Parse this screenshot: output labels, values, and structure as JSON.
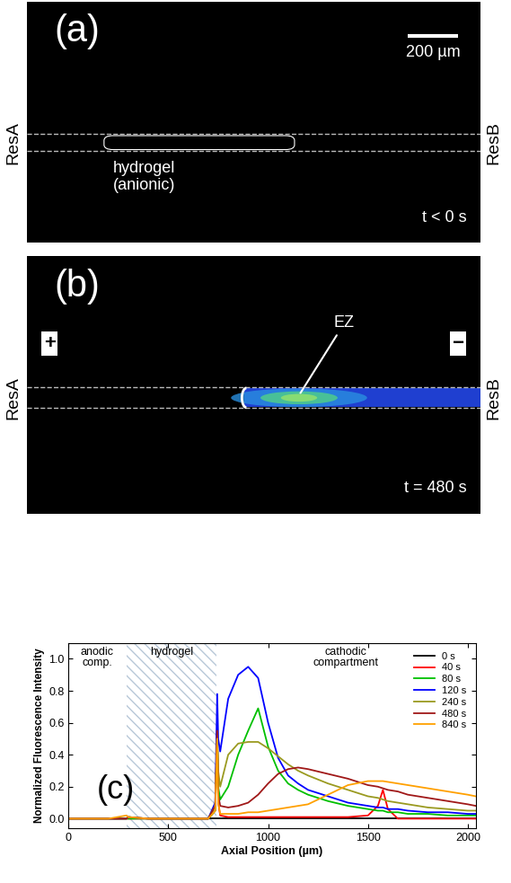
{
  "panel_a": {
    "label": "(a)",
    "scale_bar": "200 µm",
    "left_label": "ResA",
    "right_label": "ResB",
    "hydrogel_label": "hydrogel\n(anionic)",
    "time": "t < 0 s"
  },
  "panel_b": {
    "label": "(b)",
    "left_sign": "+",
    "right_sign": "−",
    "zone_label": "EZ",
    "left_label": "ResA",
    "right_label": "ResB",
    "time": "t = 480 s"
  },
  "chart_data": {
    "type": "line",
    "panel_label": "(c)",
    "x_label": "Axial Position (µm)",
    "y_label": "Normalized Fluorescence Intensity",
    "xlim": [
      0,
      2040
    ],
    "ylim": [
      -0.06,
      1.1
    ],
    "xticks": [
      0,
      500,
      1000,
      1500,
      2000
    ],
    "yticks": [
      0.0,
      0.2,
      0.4,
      0.6,
      0.8,
      1.0
    ],
    "legend": "upper right",
    "regions": [
      {
        "label": "anodic\ncomp.",
        "range": [
          0,
          290
        ]
      },
      {
        "label": "hydrogel",
        "range": [
          290,
          740
        ]
      },
      {
        "label": "cathodic\ncompartment",
        "range": [
          740,
          2040
        ]
      }
    ],
    "x": [
      0,
      100,
      200,
      290,
      300,
      400,
      500,
      600,
      700,
      735,
      745,
      750,
      760,
      800,
      850,
      900,
      950,
      1000,
      1050,
      1100,
      1150,
      1200,
      1300,
      1400,
      1500,
      1550,
      1575,
      1600,
      1650,
      1700,
      1800,
      1900,
      2000,
      2040
    ],
    "series": [
      {
        "name": "0 s",
        "color": "#000000",
        "values": [
          0,
          0,
          0,
          0,
          0,
          0,
          0,
          0,
          0,
          0,
          0,
          0,
          0,
          0,
          0,
          0,
          0,
          0,
          0,
          0,
          0,
          0,
          0,
          0,
          0,
          0,
          0,
          0,
          0,
          0,
          0,
          0,
          0,
          0
        ]
      },
      {
        "name": "40 s",
        "color": "#ff0000",
        "values": [
          0,
          0,
          0,
          0,
          0,
          0,
          0,
          0,
          0,
          0.05,
          0.57,
          0.1,
          0.02,
          0.01,
          0.01,
          0.01,
          0.01,
          0.01,
          0.01,
          0.01,
          0.01,
          0.01,
          0.01,
          0.01,
          0.02,
          0.08,
          0.18,
          0.06,
          0.0,
          0.0,
          0,
          0,
          0,
          0
        ]
      },
      {
        "name": "80 s",
        "color": "#00c000",
        "values": [
          0,
          0,
          0,
          0,
          0,
          0,
          0,
          0,
          0,
          0.05,
          0.55,
          0.2,
          0.12,
          0.2,
          0.4,
          0.55,
          0.69,
          0.45,
          0.3,
          0.22,
          0.18,
          0.15,
          0.11,
          0.08,
          0.06,
          0.05,
          0.05,
          0.04,
          0.04,
          0.03,
          0.03,
          0.02,
          0.02,
          0.02
        ]
      },
      {
        "name": "120 s",
        "color": "#0000ff",
        "values": [
          0,
          0,
          0,
          0,
          0.01,
          0,
          0,
          0,
          0,
          0.1,
          0.78,
          0.5,
          0.42,
          0.75,
          0.9,
          0.95,
          0.88,
          0.6,
          0.38,
          0.27,
          0.22,
          0.18,
          0.14,
          0.1,
          0.08,
          0.07,
          0.07,
          0.06,
          0.06,
          0.05,
          0.04,
          0.04,
          0.03,
          0.03
        ]
      },
      {
        "name": "240 s",
        "color": "#9a9a20",
        "values": [
          0,
          0,
          0,
          0,
          0.01,
          0,
          0,
          0,
          0,
          0.08,
          0.52,
          0.3,
          0.2,
          0.4,
          0.47,
          0.48,
          0.48,
          0.44,
          0.39,
          0.34,
          0.3,
          0.27,
          0.22,
          0.18,
          0.14,
          0.13,
          0.12,
          0.11,
          0.1,
          0.09,
          0.07,
          0.06,
          0.05,
          0.05
        ]
      },
      {
        "name": "480 s",
        "color": "#a01818",
        "values": [
          0,
          0,
          0,
          0,
          0.01,
          0,
          0,
          0,
          0,
          0.08,
          0.55,
          0.15,
          0.08,
          0.07,
          0.08,
          0.1,
          0.15,
          0.22,
          0.28,
          0.31,
          0.32,
          0.31,
          0.28,
          0.25,
          0.21,
          0.2,
          0.19,
          0.18,
          0.17,
          0.15,
          0.13,
          0.11,
          0.09,
          0.08
        ]
      },
      {
        "name": "840 s",
        "color": "#ffa000",
        "values": [
          0,
          0,
          0,
          0.02,
          0.01,
          0,
          0,
          0,
          0,
          0.05,
          0.5,
          0.1,
          0.03,
          0.03,
          0.03,
          0.04,
          0.04,
          0.05,
          0.06,
          0.07,
          0.08,
          0.09,
          0.15,
          0.21,
          0.235,
          0.235,
          0.235,
          0.23,
          0.22,
          0.21,
          0.19,
          0.17,
          0.15,
          0.14
        ]
      }
    ]
  }
}
